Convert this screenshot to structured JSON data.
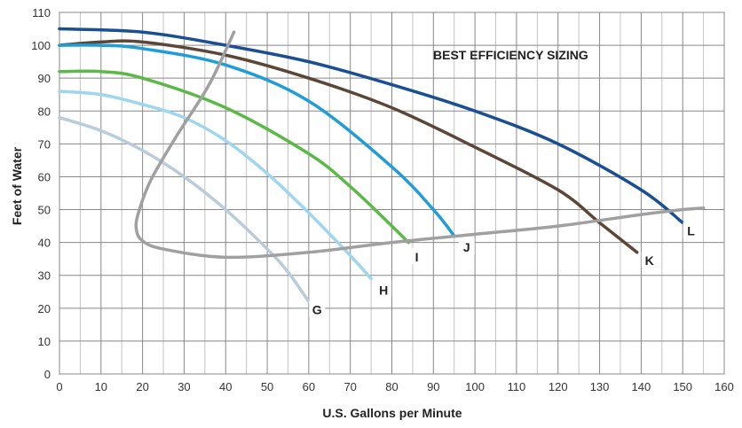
{
  "chart_data": {
    "type": "line",
    "title": "",
    "xlabel": "U.S. Gallons per Minute",
    "ylabel": "Feet of Water",
    "xlim": [
      0,
      160
    ],
    "ylim": [
      0,
      110
    ],
    "xticks": [
      "0",
      "10",
      "20",
      "30",
      "40",
      "50",
      "60",
      "70",
      "80",
      "90",
      "100",
      "110",
      "120",
      "130",
      "140",
      "150",
      "160"
    ],
    "yticks": [
      "0",
      "10",
      "20",
      "30",
      "40",
      "50",
      "60",
      "70",
      "80",
      "90",
      "100",
      "110"
    ],
    "grid": true,
    "annotation": "BEST EFFICIENCY SIZING",
    "series": [
      {
        "name": "L",
        "color": "#1a4f94",
        "x": [
          0,
          20,
          40,
          60,
          80,
          100,
          120,
          140,
          150
        ],
        "y": [
          105,
          104,
          100,
          95,
          88,
          80,
          70,
          56,
          46
        ]
      },
      {
        "name": "K",
        "color": "#5b4638",
        "x": [
          0,
          10,
          20,
          40,
          60,
          80,
          100,
          120,
          130,
          139
        ],
        "y": [
          100,
          101,
          101,
          97,
          90,
          81,
          69,
          56,
          46,
          37
        ]
      },
      {
        "name": "J",
        "color": "#1f9dd8",
        "x": [
          0,
          10,
          20,
          40,
          60,
          80,
          90,
          95
        ],
        "y": [
          100,
          100,
          99,
          94,
          83,
          63,
          50,
          42
        ]
      },
      {
        "name": "I",
        "color": "#5bb947",
        "x": [
          0,
          10,
          20,
          40,
          60,
          70,
          80,
          84
        ],
        "y": [
          92,
          92,
          90,
          81,
          67,
          57,
          45,
          40
        ]
      },
      {
        "name": "H",
        "color": "#9dd6ee",
        "x": [
          0,
          10,
          20,
          30,
          40,
          50,
          60,
          70,
          75
        ],
        "y": [
          86,
          85,
          82,
          78,
          71,
          61,
          49,
          36,
          29
        ]
      },
      {
        "name": "G",
        "color": "#b9ccd9",
        "x": [
          0,
          10,
          20,
          30,
          40,
          50,
          55,
          60
        ],
        "y": [
          78,
          74,
          68,
          60,
          50,
          38,
          31,
          22
        ]
      },
      {
        "name": "",
        "color": "#a0a0a0",
        "x": [
          42,
          36,
          28,
          22,
          19,
          18.5,
          20,
          25,
          40,
          60,
          80,
          100,
          120,
          140,
          150,
          155
        ],
        "y": [
          104,
          88,
          72,
          59,
          49,
          44,
          40.5,
          38,
          35.5,
          37,
          40,
          42.5,
          45,
          48.5,
          50,
          50.5
        ]
      }
    ],
    "curve_labels": [
      {
        "text": "L",
        "x": 152,
        "y": 43
      },
      {
        "text": "K",
        "x": 142,
        "y": 34
      },
      {
        "text": "J",
        "x": 98,
        "y": 38
      },
      {
        "text": "I",
        "x": 86,
        "y": 35
      },
      {
        "text": "H",
        "x": 78,
        "y": 25
      },
      {
        "text": "G",
        "x": 62,
        "y": 19
      }
    ]
  }
}
